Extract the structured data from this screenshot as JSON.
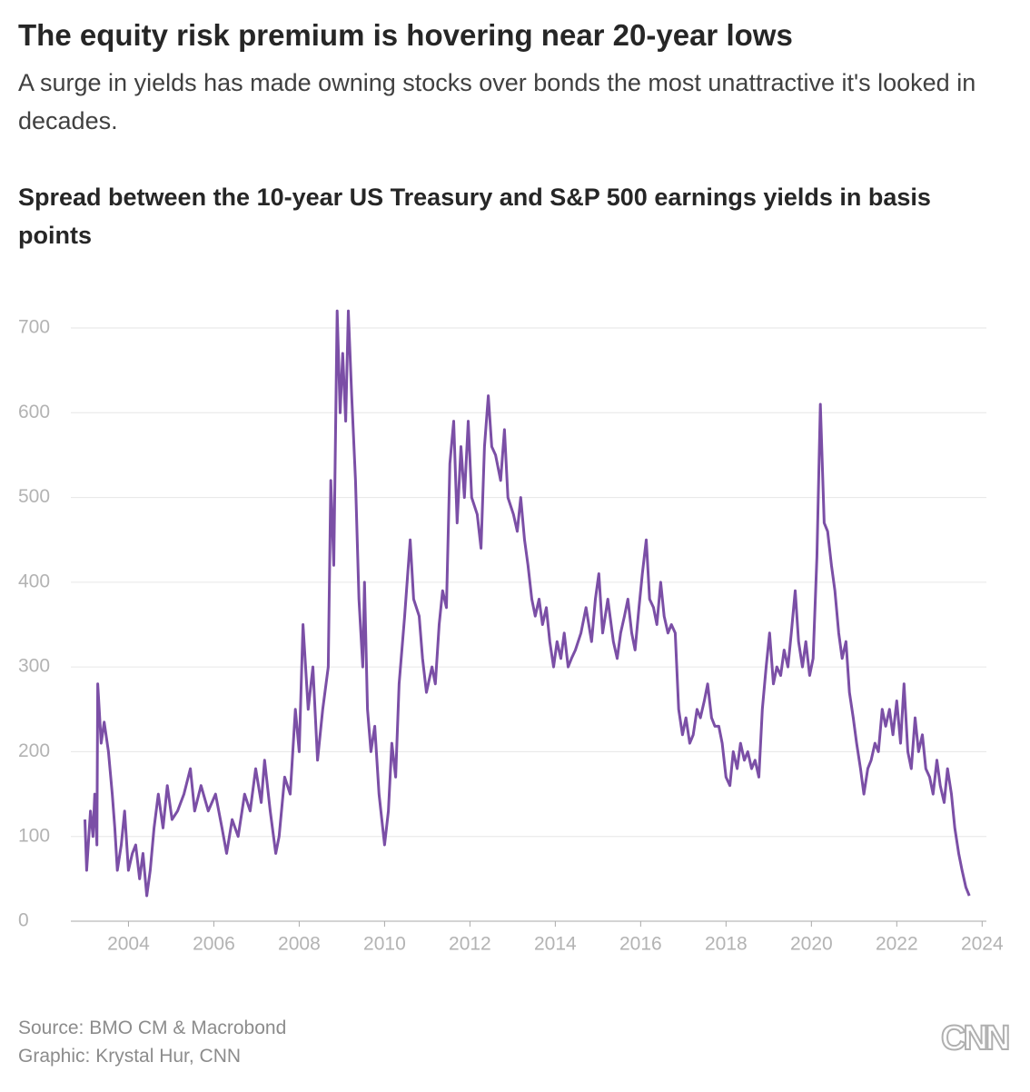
{
  "chart_data": {
    "type": "line",
    "title": "The equity risk premium is hovering near 20-year lows",
    "subtitle": "A surge in yields has made owning stocks over bonds the most unattractive it's looked in decades.",
    "chart_title": "Spread between the 10-year US Treasury and S&P 500 earnings yields in basis points",
    "source": "Source: BMO CM & Macrobond",
    "credit": "Graphic: Krystal Hur, CNN",
    "logo": "CNN",
    "xlim": [
      2002.65,
      2024.1
    ],
    "xticks": [
      2004,
      2006,
      2008,
      2010,
      2012,
      2014,
      2016,
      2018,
      2020,
      2022,
      2024
    ],
    "ylim": [
      0,
      700
    ],
    "yticks": [
      0,
      100,
      200,
      300,
      400,
      500,
      600,
      700
    ],
    "grid": true,
    "series": [
      {
        "name": "Spread",
        "color": "#7b4fa6",
        "x": [
          2002.98,
          2003.02,
          2003.11,
          2003.17,
          2003.21,
          2003.26,
          2003.28,
          2003.36,
          2003.43,
          2003.53,
          2003.62,
          2003.68,
          2003.74,
          2003.83,
          2003.91,
          2004.0,
          2004.09,
          2004.17,
          2004.26,
          2004.34,
          2004.43,
          2004.51,
          2004.6,
          2004.7,
          2004.81,
          2004.91,
          2005.02,
          2005.15,
          2005.3,
          2005.45,
          2005.55,
          2005.7,
          2005.87,
          2006.04,
          2006.19,
          2006.3,
          2006.43,
          2006.57,
          2006.72,
          2006.85,
          2006.98,
          2007.11,
          2007.19,
          2007.32,
          2007.45,
          2007.53,
          2007.66,
          2007.79,
          2007.91,
          2008.0,
          2008.09,
          2008.21,
          2008.32,
          2008.43,
          2008.55,
          2008.68,
          2008.74,
          2008.81,
          2008.89,
          2008.96,
          2009.02,
          2009.09,
          2009.15,
          2009.23,
          2009.32,
          2009.4,
          2009.49,
          2009.53,
          2009.6,
          2009.68,
          2009.77,
          2009.87,
          2010.0,
          2010.09,
          2010.17,
          2010.26,
          2010.34,
          2010.47,
          2010.6,
          2010.68,
          2010.81,
          2010.89,
          2010.98,
          2011.11,
          2011.19,
          2011.28,
          2011.36,
          2011.45,
          2011.53,
          2011.62,
          2011.7,
          2011.79,
          2011.87,
          2011.96,
          2012.04,
          2012.17,
          2012.26,
          2012.34,
          2012.43,
          2012.51,
          2012.6,
          2012.72,
          2012.81,
          2012.89,
          2013.02,
          2013.11,
          2013.19,
          2013.28,
          2013.36,
          2013.45,
          2013.53,
          2013.62,
          2013.7,
          2013.79,
          2013.87,
          2013.96,
          2014.04,
          2014.13,
          2014.21,
          2014.3,
          2014.38,
          2014.47,
          2014.6,
          2014.72,
          2014.85,
          2014.94,
          2015.02,
          2015.11,
          2015.23,
          2015.36,
          2015.45,
          2015.53,
          2015.62,
          2015.7,
          2015.79,
          2015.87,
          2015.96,
          2016.04,
          2016.13,
          2016.21,
          2016.3,
          2016.38,
          2016.47,
          2016.55,
          2016.64,
          2016.72,
          2016.81,
          2016.89,
          2016.98,
          2017.06,
          2017.15,
          2017.23,
          2017.32,
          2017.4,
          2017.49,
          2017.57,
          2017.66,
          2017.74,
          2017.83,
          2017.91,
          2018.0,
          2018.09,
          2018.17,
          2018.26,
          2018.34,
          2018.43,
          2018.51,
          2018.6,
          2018.68,
          2018.77,
          2018.85,
          2018.94,
          2019.02,
          2019.11,
          2019.19,
          2019.28,
          2019.36,
          2019.45,
          2019.53,
          2019.62,
          2019.7,
          2019.79,
          2019.87,
          2019.96,
          2020.04,
          2020.13,
          2020.21,
          2020.3,
          2020.38,
          2020.47,
          2020.55,
          2020.64,
          2020.72,
          2020.81,
          2020.89,
          2020.98,
          2021.06,
          2021.15,
          2021.23,
          2021.32,
          2021.4,
          2021.49,
          2021.57,
          2021.66,
          2021.74,
          2021.83,
          2021.91,
          2022.0,
          2022.09,
          2022.17,
          2022.26,
          2022.34,
          2022.43,
          2022.51,
          2022.6,
          2022.68,
          2022.77,
          2022.85,
          2022.94,
          2023.02,
          2023.11,
          2023.19,
          2023.28,
          2023.36,
          2023.45,
          2023.53,
          2023.62,
          2023.7
        ],
        "values": [
          120,
          60,
          130,
          100,
          150,
          90,
          280,
          210,
          235,
          200,
          150,
          110,
          60,
          90,
          130,
          60,
          80,
          90,
          50,
          80,
          30,
          60,
          110,
          150,
          110,
          160,
          120,
          130,
          150,
          180,
          130,
          160,
          130,
          150,
          110,
          80,
          120,
          100,
          150,
          130,
          180,
          140,
          190,
          130,
          80,
          100,
          170,
          150,
          250,
          200,
          350,
          250,
          300,
          190,
          250,
          300,
          520,
          420,
          720,
          600,
          670,
          590,
          720,
          620,
          520,
          380,
          300,
          400,
          250,
          200,
          230,
          150,
          90,
          130,
          210,
          170,
          280,
          360,
          450,
          380,
          360,
          310,
          270,
          300,
          280,
          350,
          390,
          370,
          540,
          590,
          470,
          560,
          500,
          590,
          500,
          480,
          440,
          560,
          620,
          560,
          550,
          520,
          580,
          500,
          480,
          460,
          500,
          450,
          420,
          380,
          360,
          380,
          350,
          370,
          330,
          300,
          330,
          310,
          340,
          300,
          310,
          320,
          340,
          370,
          330,
          380,
          410,
          340,
          380,
          330,
          310,
          340,
          360,
          380,
          340,
          320,
          370,
          410,
          450,
          380,
          370,
          350,
          400,
          360,
          340,
          350,
          340,
          250,
          220,
          240,
          210,
          220,
          250,
          240,
          260,
          280,
          240,
          230,
          230,
          210,
          170,
          160,
          200,
          180,
          210,
          190,
          200,
          180,
          190,
          170,
          250,
          300,
          340,
          280,
          300,
          290,
          320,
          300,
          340,
          390,
          330,
          300,
          330,
          290,
          310,
          430,
          610,
          470,
          460,
          420,
          390,
          340,
          310,
          330,
          270,
          240,
          210,
          180,
          150,
          180,
          190,
          210,
          200,
          250,
          230,
          250,
          220,
          260,
          210,
          280,
          200,
          180,
          240,
          200,
          220,
          180,
          170,
          150,
          190,
          160,
          140,
          180,
          150,
          110,
          80,
          60,
          40,
          30
        ]
      }
    ]
  }
}
